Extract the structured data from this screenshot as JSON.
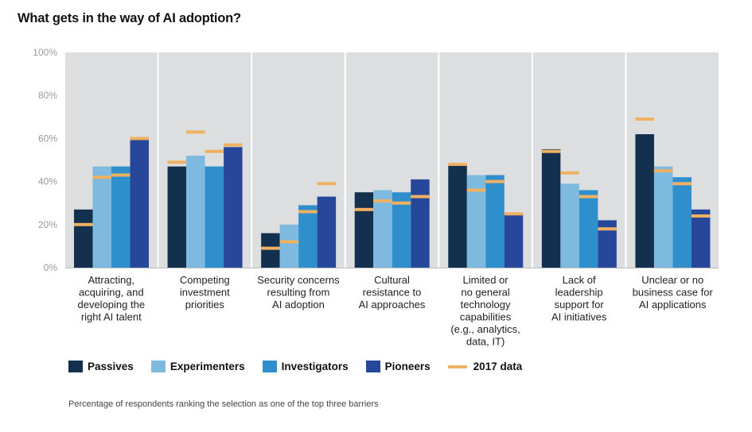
{
  "title": "What gets in the way of AI adoption?",
  "note": "Percentage of respondents ranking the selection as one of the top three barriers",
  "colors": {
    "passives": "#14304f",
    "experimenters": "#7ebadf",
    "investigators": "#2f8fcd",
    "pioneers": "#27479a",
    "marker_2017": "#f0b262",
    "panel_bg": "#dcdedf"
  },
  "chart_data": {
    "type": "bar",
    "title": "What gets in the way of AI adoption?",
    "ylim": [
      0,
      100
    ],
    "yticks": [
      "0%",
      "20%",
      "40%",
      "60%",
      "80%",
      "100%"
    ],
    "ytick_values": [
      0,
      20,
      40,
      60,
      80,
      100
    ],
    "categories": [
      [
        "Attracting,",
        "acquiring, and",
        "developing the",
        "right AI talent"
      ],
      [
        "Competing",
        "investment",
        "priorities"
      ],
      [
        "Security concerns",
        "resulting from",
        "AI adoption"
      ],
      [
        "Cultural",
        "resistance to",
        "AI approaches"
      ],
      [
        "Limited or",
        "no general",
        "technology",
        "capabilities",
        "(e.g., analytics,",
        "data, IT)"
      ],
      [
        "Lack of",
        "leadership",
        "support for",
        "AI initiatives"
      ],
      [
        "Unclear or no",
        "business case for",
        "AI applications"
      ]
    ],
    "series": [
      {
        "name": "Passives",
        "values": [
          27,
          47,
          16,
          35,
          48,
          55,
          62
        ]
      },
      {
        "name": "Experimenters",
        "values": [
          47,
          52,
          20,
          36,
          43,
          39,
          47
        ]
      },
      {
        "name": "Investigators",
        "values": [
          47,
          47,
          29,
          35,
          43,
          36,
          42
        ]
      },
      {
        "name": "Pioneers",
        "values": [
          60,
          56,
          33,
          41,
          25,
          22,
          27
        ]
      }
    ],
    "series_2017": {
      "name": "2017 data",
      "values": [
        [
          20,
          42,
          43,
          60
        ],
        [
          49,
          63,
          54,
          57
        ],
        [
          9,
          12,
          26,
          39
        ],
        [
          27,
          31,
          30,
          33
        ],
        [
          48,
          36,
          40,
          25
        ],
        [
          54,
          44,
          33,
          18
        ],
        [
          69,
          45,
          39,
          24
        ]
      ]
    },
    "legend": [
      "Passives",
      "Experimenters",
      "Investigators",
      "Pioneers",
      "2017 data"
    ],
    "legend_position": "bottom-left",
    "grid": false
  }
}
